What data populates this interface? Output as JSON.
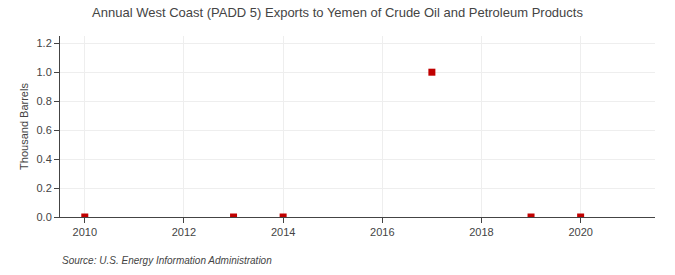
{
  "chart_data": {
    "type": "scatter",
    "title": "Annual West Coast (PADD 5) Exports to Yemen of Crude Oil and Petroleum Products",
    "ylabel": "Thousand Barrels",
    "source": "Source: U.S. Energy Information Administration",
    "x": [
      2010,
      2013,
      2014,
      2017,
      2019,
      2020
    ],
    "values": [
      0.0,
      0.0,
      0.0,
      1.0,
      0.0,
      0.0
    ],
    "color": "#c00000",
    "marker": "square",
    "xlim": [
      2009.5,
      2021.5
    ],
    "ylim": [
      0.0,
      1.25
    ],
    "xticks": [
      2010,
      2012,
      2014,
      2016,
      2018,
      2020
    ],
    "yticks": [
      {
        "value": 0.0,
        "label": "0.0"
      },
      0.2,
      0.4,
      0.6,
      0.8,
      {
        "value": 1.0,
        "label": "1.0"
      },
      1.2
    ],
    "grid": true
  }
}
